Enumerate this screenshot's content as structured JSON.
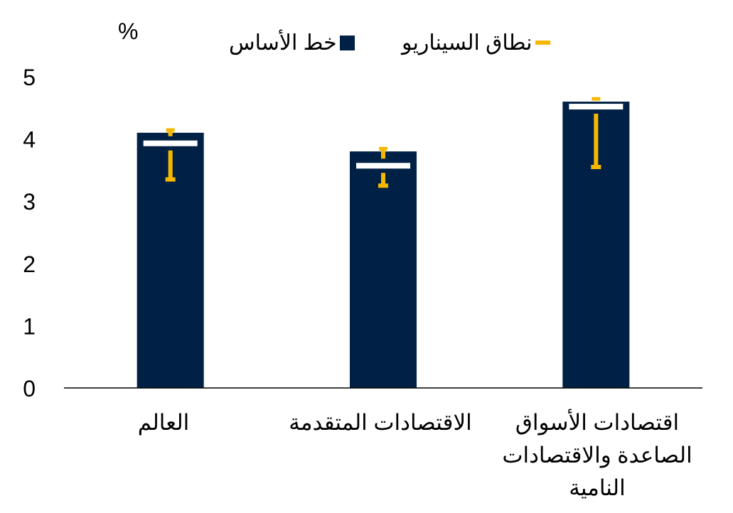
{
  "chart_data": {
    "type": "bar",
    "unit_label": "%",
    "categories": [
      "العالم",
      "الاقتصادات المتقدمة",
      "اقتصادات الأسواق الصاعدة والاقتصادات النامية"
    ],
    "category_label_lines": [
      [
        "العالم"
      ],
      [
        "الاقتصادات المتقدمة"
      ],
      [
        "اقتصادات الأسواق",
        "الصاعدة والاقتصادات",
        "النامية"
      ]
    ],
    "series": [
      {
        "name": "خط الأساس",
        "type": "bar",
        "color": "#002145",
        "values": [
          4.1,
          3.8,
          4.6
        ]
      },
      {
        "name": "نطاق السيناريو",
        "type": "range",
        "color": "#f5b800",
        "ranges": [
          [
            3.35,
            4.15
          ],
          [
            3.25,
            3.85
          ],
          [
            3.55,
            4.65
          ]
        ]
      }
    ],
    "marker": {
      "color": "#ffffff",
      "values": [
        3.93,
        3.57,
        4.52
      ]
    },
    "yticks": [
      "0",
      "1",
      "2",
      "3",
      "4",
      "5"
    ],
    "ylim": [
      0,
      5
    ],
    "grid": false,
    "legend_position": "top"
  }
}
